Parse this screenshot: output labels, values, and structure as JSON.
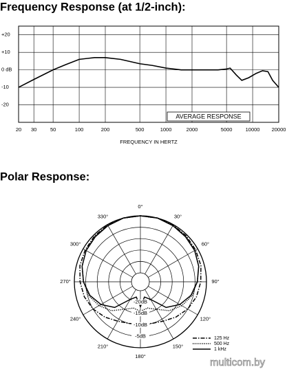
{
  "chart_data": [
    {
      "type": "line",
      "title": "Frequency Response (at 1/2-inch):",
      "x_label": "FREQUENCY IN HERTZ",
      "annotation": "AVERAGE RESPONSE",
      "log_x": true,
      "grid": true,
      "color": "#000000",
      "x": [
        20,
        30,
        50,
        70,
        100,
        150,
        200,
        300,
        500,
        700,
        1000,
        1500,
        2000,
        3000,
        4000,
        5000,
        5500,
        6500,
        7500,
        9000,
        11000,
        13000,
        15000,
        17000,
        20000
      ],
      "values": [
        -10,
        -5.5,
        0,
        3,
        6,
        7,
        7,
        6,
        3.5,
        2.5,
        1,
        0,
        0,
        0,
        0,
        0.5,
        1,
        -3,
        -6,
        -4.5,
        -2,
        -0.5,
        -1,
        -6,
        -10
      ],
      "xlim": [
        20,
        20000
      ],
      "ylim": [
        -30,
        25
      ],
      "xticks": [
        20,
        30,
        50,
        100,
        200,
        500,
        1000,
        2000,
        5000,
        10000,
        20000
      ],
      "yticks": [
        {
          "value": 20,
          "label": "+20"
        },
        {
          "value": 10,
          "label": "+10"
        },
        {
          "value": 0,
          "label": "0 dB"
        },
        -10,
        -20
      ]
    },
    {
      "type": "polar",
      "title": "Polar Response:",
      "legend": "lower right",
      "theta": [
        0,
        15,
        30,
        45,
        60,
        75,
        90,
        105,
        120,
        135,
        150,
        165,
        180,
        195,
        210,
        225,
        240,
        255,
        270,
        285,
        300,
        315,
        330,
        345
      ],
      "rlim": [
        -25,
        0
      ],
      "rticks": [
        {
          "value": -20,
          "label": "-20dB"
        },
        {
          "value": -15,
          "label": "-15dB"
        },
        {
          "value": -10,
          "label": "-10dB"
        },
        {
          "value": -5,
          "label": "-5dB"
        }
      ],
      "thetaticks": [
        {
          "value": 0,
          "label": "0°"
        },
        {
          "value": 30,
          "label": "30°"
        },
        {
          "value": 60,
          "label": "60°"
        },
        {
          "value": 90,
          "label": "90°"
        },
        {
          "value": 120,
          "label": "120°"
        },
        {
          "value": 150,
          "label": "150°"
        },
        {
          "value": 180,
          "label": "180°"
        },
        {
          "value": 210,
          "label": "210°"
        },
        {
          "value": 240,
          "label": "240°"
        },
        {
          "value": 270,
          "label": "270°"
        },
        {
          "value": 300,
          "label": "300°"
        },
        {
          "value": 330,
          "label": "330°"
        }
      ],
      "series": [
        {
          "name": "125 Hz",
          "color": "#000000",
          "style": "dashdot",
          "values": [
            0,
            0,
            -0.2,
            -0.5,
            -1,
            -1.5,
            -2.5,
            -3.5,
            -5,
            -7,
            -9,
            -10,
            -10.5,
            -10,
            -9,
            -7,
            -5,
            -3.5,
            -2.5,
            -1.5,
            -1,
            -0.5,
            -0.2,
            0
          ]
        },
        {
          "name": "500 Hz",
          "color": "#000000",
          "style": "dotted",
          "values": [
            0,
            0,
            -0.3,
            -0.8,
            -1.5,
            -2.5,
            -4,
            -5.5,
            -8,
            -11,
            -15,
            -17,
            -16,
            -17,
            -15,
            -11,
            -8,
            -5.5,
            -4,
            -2.5,
            -1.5,
            -0.8,
            -0.3,
            0
          ]
        },
        {
          "name": "1 kHz",
          "color": "#000000",
          "style": "solid",
          "values": [
            0,
            0,
            -0.5,
            -1,
            -1.5,
            -2.5,
            -4,
            -6,
            -9,
            -13,
            -20,
            -22,
            -18,
            -22,
            -20,
            -13,
            -9,
            -6,
            -4,
            -2.5,
            -1.5,
            -1,
            -0.5,
            0
          ]
        }
      ]
    }
  ],
  "watermark": "multicom.by"
}
